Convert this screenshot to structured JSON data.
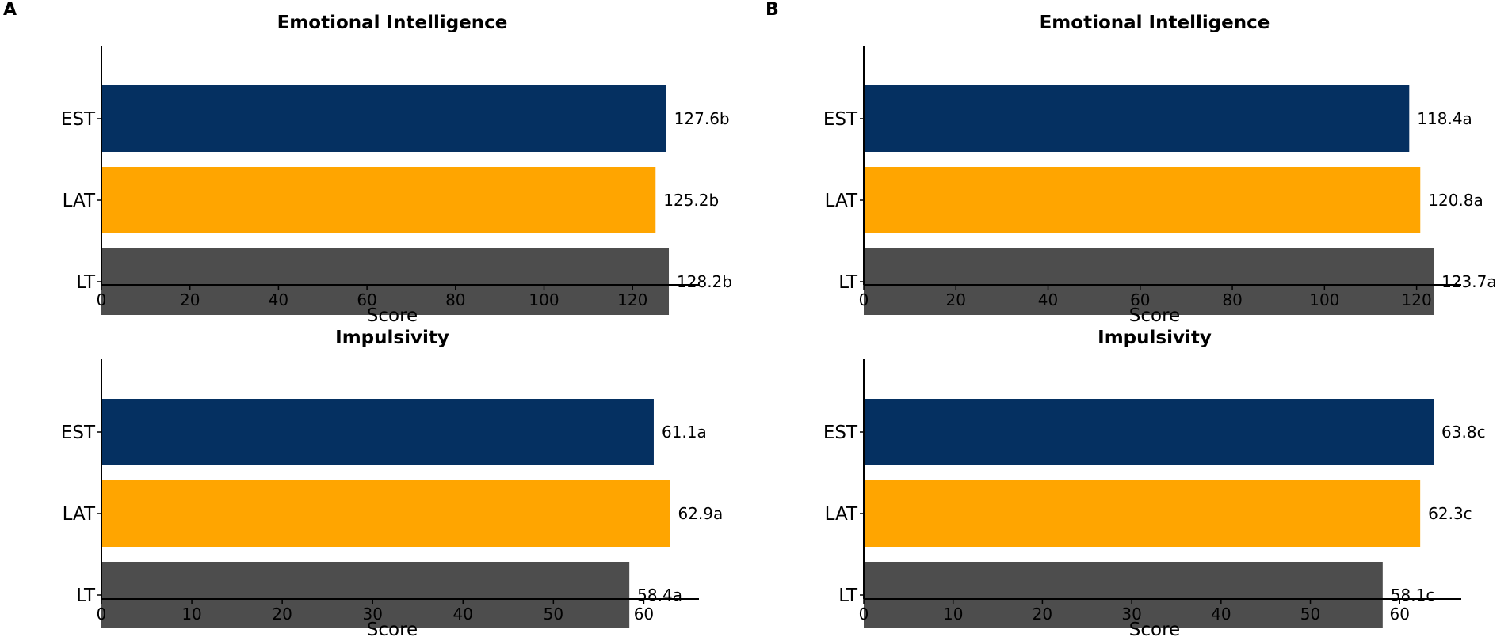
{
  "panels": [
    {
      "letter": "A"
    },
    {
      "letter": "B"
    }
  ],
  "chart_data": [
    {
      "panel": "A",
      "type": "bar",
      "orientation": "horizontal",
      "title": "Emotional Intelligence",
      "xlabel": "Score",
      "categories": [
        "EST",
        "LAT",
        "LT"
      ],
      "values": [
        127.6,
        125.2,
        128.2
      ],
      "data_labels": [
        "127.6b",
        "125.2b",
        "128.2b"
      ],
      "colors": [
        "#053061",
        "#FFA500",
        "#4D4D4D"
      ],
      "xlim": [
        0,
        135
      ],
      "xticks": [
        0,
        20,
        40,
        60,
        80,
        100,
        120
      ]
    },
    {
      "panel": "B",
      "type": "bar",
      "orientation": "horizontal",
      "title": "Emotional Intelligence",
      "xlabel": "Score",
      "categories": [
        "EST",
        "LAT",
        "LT"
      ],
      "values": [
        118.4,
        120.8,
        123.7
      ],
      "data_labels": [
        "118.4a",
        "120.8a",
        "123.7a"
      ],
      "colors": [
        "#053061",
        "#FFA500",
        "#4D4D4D"
      ],
      "xlim": [
        0,
        129.7
      ],
      "xticks": [
        0,
        20,
        40,
        60,
        80,
        100,
        120
      ]
    },
    {
      "panel": "A",
      "type": "bar",
      "orientation": "horizontal",
      "title": "Impulsivity",
      "xlabel": "Score",
      "categories": [
        "EST",
        "LAT",
        "LT"
      ],
      "values": [
        61.1,
        62.9,
        58.4
      ],
      "data_labels": [
        "61.1a",
        "62.9a",
        "58.4a"
      ],
      "colors": [
        "#053061",
        "#FFA500",
        "#4D4D4D"
      ],
      "xlim": [
        0,
        66.1
      ],
      "xticks": [
        0,
        10,
        20,
        30,
        40,
        50,
        60
      ]
    },
    {
      "panel": "B",
      "type": "bar",
      "orientation": "horizontal",
      "title": "Impulsivity",
      "xlabel": "Score",
      "categories": [
        "EST",
        "LAT",
        "LT"
      ],
      "values": [
        63.8,
        62.3,
        58.1
      ],
      "data_labels": [
        "63.8c",
        "62.3c",
        "58.1c"
      ],
      "colors": [
        "#053061",
        "#FFA500",
        "#4D4D4D"
      ],
      "xlim": [
        0,
        66.9
      ],
      "xticks": [
        0,
        10,
        20,
        30,
        40,
        50,
        60
      ]
    }
  ]
}
